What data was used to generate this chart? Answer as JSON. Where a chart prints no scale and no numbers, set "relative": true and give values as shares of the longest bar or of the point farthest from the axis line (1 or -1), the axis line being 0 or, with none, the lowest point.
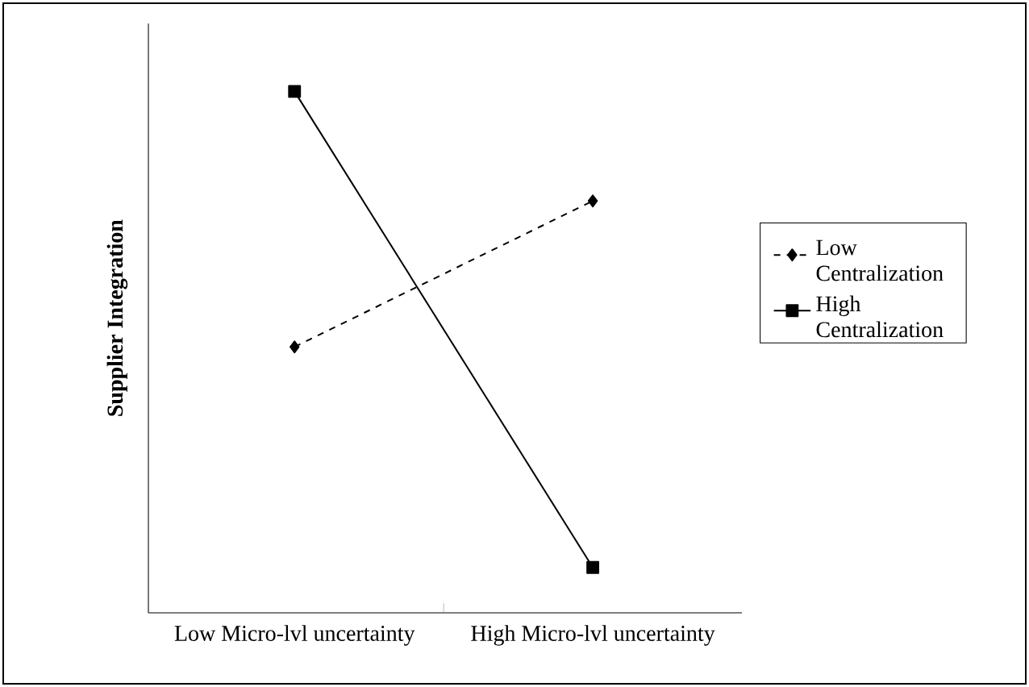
{
  "chart_data": {
    "type": "line",
    "relative": true,
    "ylabel": "Supplier Integration",
    "categories": [
      "Low Micro-lvl uncertainty",
      "High Micro-lvl uncertainty"
    ],
    "series": [
      {
        "name": "Low Centralization",
        "color": "#000000",
        "values": [
          0.51,
          0.79
        ],
        "marker": "diamond",
        "line_style": "dashed"
      },
      {
        "name": "High Centralization",
        "color": "#000000",
        "values": [
          1,
          0.087
        ],
        "marker": "square",
        "line_style": "solid"
      }
    ],
    "legend": "right"
  }
}
